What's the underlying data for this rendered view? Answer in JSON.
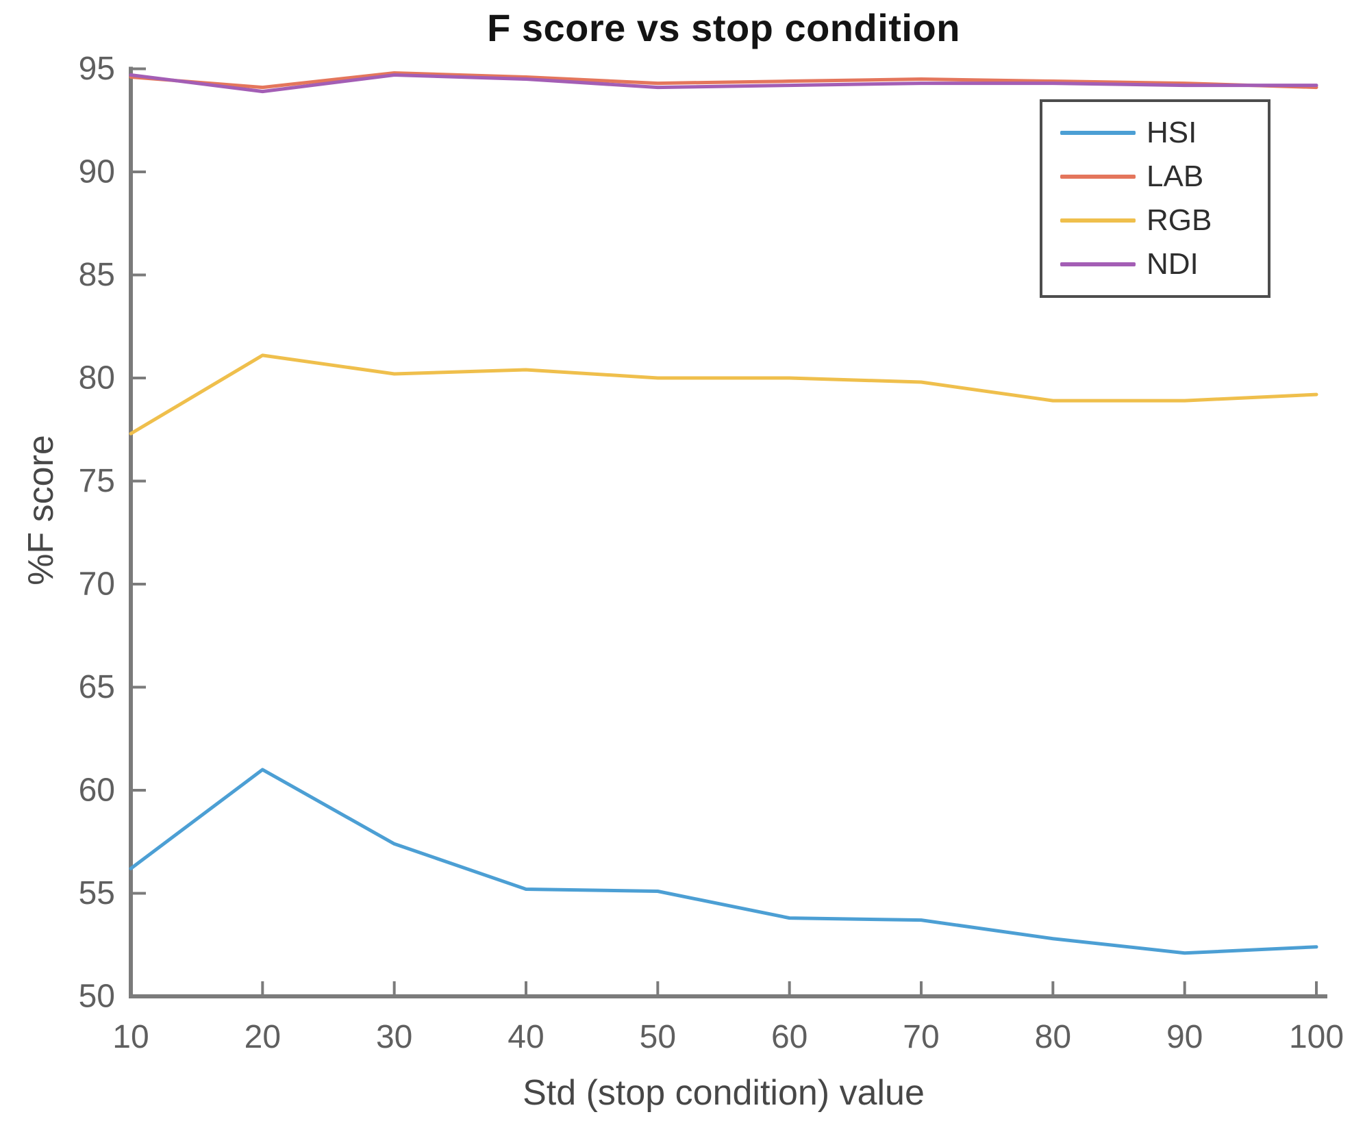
{
  "chart_data": {
    "type": "line",
    "title": "F score vs stop condition",
    "xlabel": "Std (stop condition) value",
    "ylabel": "%F score",
    "xlim": [
      10,
      100
    ],
    "ylim": [
      50,
      95
    ],
    "x_ticks": [
      10,
      20,
      30,
      40,
      50,
      60,
      70,
      80,
      90,
      100
    ],
    "y_ticks": [
      50,
      55,
      60,
      65,
      70,
      75,
      80,
      85,
      90,
      95
    ],
    "grid": false,
    "legend_position": "top-right",
    "x": [
      10,
      20,
      30,
      40,
      50,
      60,
      70,
      80,
      90,
      100
    ],
    "series": [
      {
        "name": "HSI",
        "color": "#4C9FD4",
        "values": [
          56.2,
          61.0,
          57.4,
          55.2,
          55.1,
          53.8,
          53.7,
          52.8,
          52.1,
          52.4
        ]
      },
      {
        "name": "LAB",
        "color": "#E4765C",
        "values": [
          94.6,
          94.1,
          94.8,
          94.6,
          94.3,
          94.4,
          94.5,
          94.4,
          94.3,
          94.1
        ]
      },
      {
        "name": "RGB",
        "color": "#EFBF4C",
        "values": [
          77.3,
          81.1,
          80.2,
          80.4,
          80.0,
          80.0,
          79.8,
          78.9,
          78.9,
          79.2
        ]
      },
      {
        "name": "NDI",
        "color": "#A35EB5",
        "values": [
          94.7,
          93.9,
          94.7,
          94.5,
          94.1,
          94.2,
          94.3,
          94.3,
          94.2,
          94.2
        ]
      }
    ],
    "style": {
      "axis_line_color": "#7B7B7B",
      "tick_label_color": "#5F5F5F",
      "axis_label_color": "#474747",
      "title_color": "#141414",
      "legend_border_color": "#4D4D4D",
      "background_color": "#FFFFFF"
    }
  }
}
